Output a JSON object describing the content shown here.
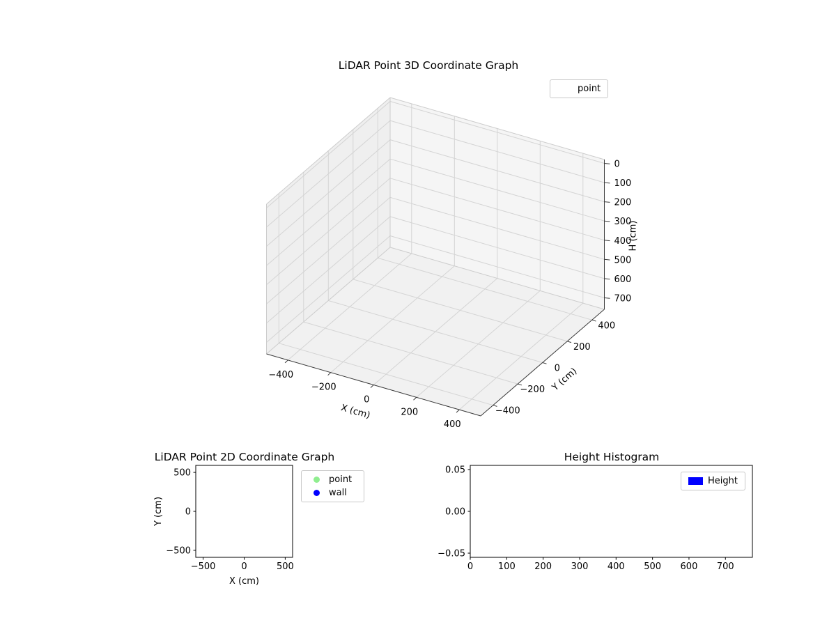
{
  "figure": {
    "background": "#ffffff"
  },
  "chart_data": [
    {
      "type": "scatter",
      "projection": "3d",
      "title": "LiDAR Point 3D Coordinate Graph",
      "xlabel": "X (cm)",
      "ylabel": "Y (cm)",
      "zlabel": "H (cm)",
      "xlim": [
        -500,
        500
      ],
      "ylim": [
        -500,
        500
      ],
      "zlim": [
        0,
        700
      ],
      "z_axis_inverted": true,
      "grid": true,
      "xticks": [
        -400,
        -200,
        0,
        200,
        400
      ],
      "xtick_labels": [
        "−400",
        "−200",
        "0",
        "200",
        "400"
      ],
      "yticks": [
        -400,
        -200,
        0,
        200,
        400
      ],
      "ytick_labels": [
        "−400",
        "−200",
        "0",
        "200",
        "400"
      ],
      "zticks": [
        0,
        100,
        200,
        300,
        400,
        500,
        600,
        700
      ],
      "ztick_labels": [
        "0",
        "100",
        "200",
        "300",
        "400",
        "500",
        "600",
        "700"
      ],
      "legend": {
        "position": "upper right outside axes",
        "entries": [
          {
            "label": "point",
            "marker": "none",
            "color": "#ffffff"
          }
        ]
      },
      "series": [
        {
          "name": "point",
          "points": []
        }
      ]
    },
    {
      "type": "scatter",
      "projection": "2d",
      "title": "LiDAR Point 2D Coordinate Graph",
      "xlabel": "X (cm)",
      "ylabel": "Y (cm)",
      "xlim": [
        -590,
        590
      ],
      "ylim": [
        -590,
        590
      ],
      "grid": false,
      "xticks": [
        -500,
        0,
        500
      ],
      "xtick_labels": [
        "−500",
        "0",
        "500"
      ],
      "yticks": [
        -500,
        0,
        500
      ],
      "ytick_labels": [
        "−500",
        "0",
        "500"
      ],
      "legend": {
        "position": "outside upper right",
        "entries": [
          {
            "label": "point",
            "marker": "circle",
            "color": "#90ee90"
          },
          {
            "label": "wall",
            "marker": "circle",
            "color": "#0000ff"
          }
        ]
      },
      "series": [
        {
          "name": "point",
          "points": []
        },
        {
          "name": "wall",
          "points": []
        }
      ]
    },
    {
      "type": "bar",
      "projection": "2d",
      "title": "Height Histogram",
      "xlabel": "",
      "ylabel": "",
      "xlim": [
        0,
        774
      ],
      "ylim": [
        -0.055,
        0.055
      ],
      "grid": false,
      "xticks": [
        0,
        100,
        200,
        300,
        400,
        500,
        600,
        700
      ],
      "xtick_labels": [
        "0",
        "100",
        "200",
        "300",
        "400",
        "500",
        "600",
        "700"
      ],
      "yticks": [
        -0.05,
        0,
        0.05
      ],
      "ytick_labels": [
        "−0.05",
        "0.00",
        "0.05"
      ],
      "legend": {
        "position": "upper right",
        "entries": [
          {
            "label": "Height",
            "marker": "rect",
            "color": "#0000ff"
          }
        ]
      },
      "series": [
        {
          "name": "Height",
          "values": []
        }
      ]
    }
  ]
}
